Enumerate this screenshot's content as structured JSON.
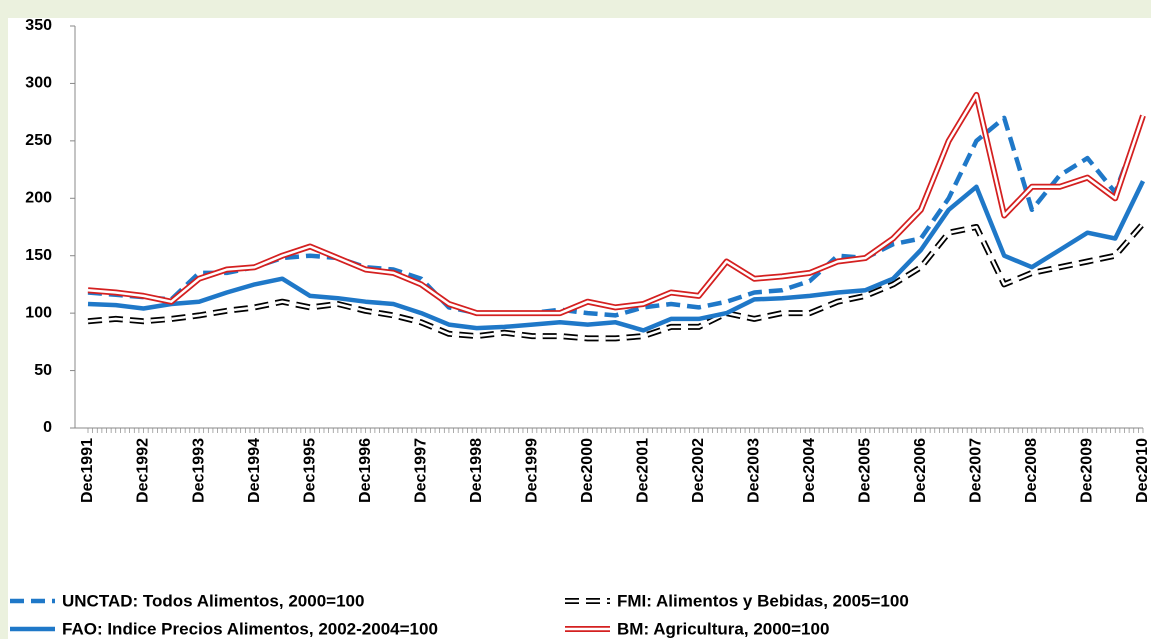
{
  "chart_data": {
    "type": "line",
    "categories": [
      "Dec1991",
      null,
      "Dec1992",
      null,
      "Dec1993",
      null,
      "Dec1994",
      null,
      "Dec1995",
      null,
      "Dec1996",
      null,
      "Dec1997",
      null,
      "Dec1998",
      null,
      "Dec1999",
      null,
      "Dec2000",
      null,
      "Dec2001",
      null,
      "Dec2002",
      null,
      "Dec2003",
      null,
      "Dec2004",
      null,
      "Dec2005",
      null,
      "Dec2006",
      null,
      "Dec2007",
      null,
      "Dec2008",
      null,
      "Dec2009",
      null,
      "Dec2010"
    ],
    "series": [
      {
        "name": "UNCTAD: Todos Alimentos, 2000=100",
        "color": "#1f78c8",
        "dash": true,
        "outlined": false,
        "values": [
          118,
          116,
          114,
          112,
          135,
          135,
          140,
          148,
          150,
          148,
          140,
          138,
          130,
          105,
          100,
          100,
          100,
          103,
          100,
          98,
          105,
          108,
          105,
          110,
          118,
          120,
          128,
          150,
          148,
          160,
          165,
          200,
          250,
          270,
          190,
          220,
          235,
          205,
          270
        ]
      },
      {
        "name": "FMI: Alimentos y Bebidas, 2005=100",
        "color": "#000000",
        "dash": true,
        "outlined": true,
        "values": [
          93,
          95,
          93,
          95,
          98,
          102,
          105,
          110,
          105,
          108,
          102,
          98,
          92,
          82,
          80,
          83,
          80,
          80,
          78,
          78,
          80,
          88,
          88,
          100,
          95,
          100,
          100,
          110,
          115,
          125,
          140,
          170,
          175,
          125,
          135,
          140,
          145,
          150,
          178
        ]
      },
      {
        "name": "FAO: Indice Precios Alimentos, 2002-2004=100",
        "color": "#1f78c8",
        "dash": false,
        "outlined": false,
        "values": [
          108,
          107,
          104,
          108,
          110,
          118,
          125,
          130,
          115,
          113,
          110,
          108,
          100,
          90,
          87,
          88,
          90,
          92,
          90,
          92,
          85,
          95,
          95,
          100,
          112,
          113,
          115,
          118,
          120,
          130,
          155,
          190,
          210,
          150,
          140,
          155,
          170,
          165,
          215
        ]
      },
      {
        "name": "BM: Agricultura, 2000=100",
        "color": "#d42020",
        "dash": false,
        "outlined": true,
        "values": [
          120,
          118,
          115,
          110,
          130,
          138,
          140,
          150,
          158,
          148,
          138,
          135,
          125,
          108,
          100,
          100,
          100,
          100,
          110,
          105,
          108,
          118,
          115,
          145,
          130,
          132,
          135,
          145,
          148,
          165,
          190,
          250,
          290,
          185,
          210,
          210,
          218,
          200,
          272
        ]
      }
    ],
    "ylim": [
      0,
      350
    ],
    "yticks": [
      0,
      50,
      100,
      150,
      200,
      250,
      300,
      350
    ],
    "grid": false
  }
}
